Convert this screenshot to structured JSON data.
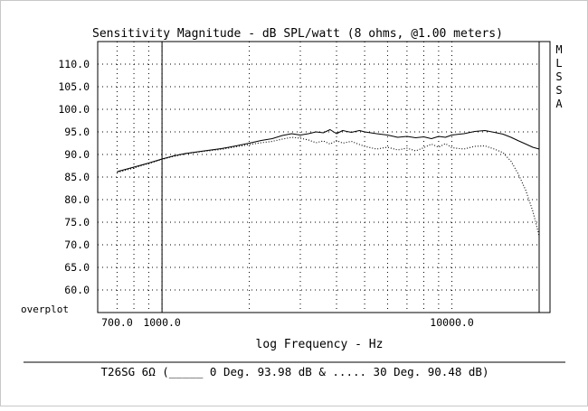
{
  "chart_data": {
    "type": "line",
    "title": "Sensitivity Magnitude - dB SPL/watt (8 ohms, @1.00 meters)",
    "xlabel": "log Frequency - Hz",
    "ylabel": "",
    "x_scale": "log",
    "xlim": [
      600,
      20000
    ],
    "ylim": [
      55,
      115
    ],
    "x_tick_labels": [
      {
        "value": 700,
        "label": "700.0"
      },
      {
        "value": 1000,
        "label": "1000.0"
      },
      {
        "value": 10000,
        "label": "10000.0"
      }
    ],
    "x_gridlines": [
      700,
      800,
      900,
      1000,
      2000,
      3000,
      4000,
      5000,
      6000,
      7000,
      8000,
      9000,
      10000,
      20000
    ],
    "y_ticks": [
      60,
      65,
      70,
      75,
      80,
      85,
      90,
      95,
      100,
      105,
      110
    ],
    "y_tick_labels": [
      "60.0",
      "65.0",
      "70.0",
      "75.0",
      "80.0",
      "85.0",
      "90.0",
      "95.0",
      "100.0",
      "105.0",
      "110.0"
    ],
    "marker_x": 1000,
    "corner_label": "overplot",
    "side_label": [
      "M",
      "L",
      "S",
      "S",
      "A"
    ],
    "series": [
      {
        "name": "0 Deg. 93.98 dB",
        "style": "solid",
        "x": [
          700,
          800,
          900,
          1000,
          1100,
          1200,
          1400,
          1600,
          1800,
          2000,
          2200,
          2400,
          2600,
          2800,
          3000,
          3200,
          3400,
          3600,
          3800,
          4000,
          4200,
          4500,
          4800,
          5000,
          5500,
          6000,
          6500,
          7000,
          7500,
          8000,
          8500,
          9000,
          9500,
          10000,
          11000,
          12000,
          13000,
          14000,
          15000,
          16000,
          17000,
          18000,
          19000,
          20000
        ],
        "values": [
          86.2,
          87.2,
          88.1,
          89.0,
          89.7,
          90.2,
          90.8,
          91.3,
          91.9,
          92.5,
          93.1,
          93.5,
          94.2,
          94.6,
          94.3,
          94.6,
          95.0,
          94.8,
          95.5,
          94.6,
          95.3,
          94.9,
          95.3,
          95.0,
          94.6,
          94.3,
          93.8,
          94.0,
          93.7,
          93.9,
          93.5,
          94.0,
          93.8,
          94.3,
          94.6,
          95.1,
          95.3,
          94.9,
          94.5,
          93.8,
          93.0,
          92.3,
          91.6,
          91.2
        ]
      },
      {
        "name": "30 Deg. 90.48 dB",
        "style": "dotted",
        "x": [
          700,
          800,
          900,
          1000,
          1100,
          1200,
          1400,
          1600,
          1800,
          2000,
          2200,
          2400,
          2600,
          2800,
          3000,
          3200,
          3400,
          3600,
          3800,
          4000,
          4200,
          4500,
          4800,
          5000,
          5500,
          6000,
          6500,
          7000,
          7500,
          8000,
          8500,
          9000,
          9500,
          10000,
          11000,
          12000,
          13000,
          14000,
          15000,
          16000,
          17000,
          18000,
          19000,
          20000
        ],
        "values": [
          86.0,
          87.0,
          88.0,
          88.9,
          89.6,
          90.1,
          90.7,
          91.1,
          91.7,
          92.2,
          92.6,
          92.9,
          93.4,
          93.8,
          93.6,
          93.2,
          92.6,
          93.0,
          92.3,
          93.1,
          92.5,
          92.9,
          92.2,
          91.8,
          91.2,
          91.6,
          91.0,
          91.4,
          90.8,
          91.5,
          92.3,
          91.6,
          92.4,
          91.5,
          91.2,
          91.8,
          91.9,
          91.2,
          90.4,
          88.5,
          85.5,
          82.0,
          77.5,
          72.0
        ]
      }
    ]
  },
  "footer": {
    "label": "T26SG 6Ω (_____ 0 Deg. 93.98 dB & ..... 30 Deg. 90.48 dB)"
  }
}
